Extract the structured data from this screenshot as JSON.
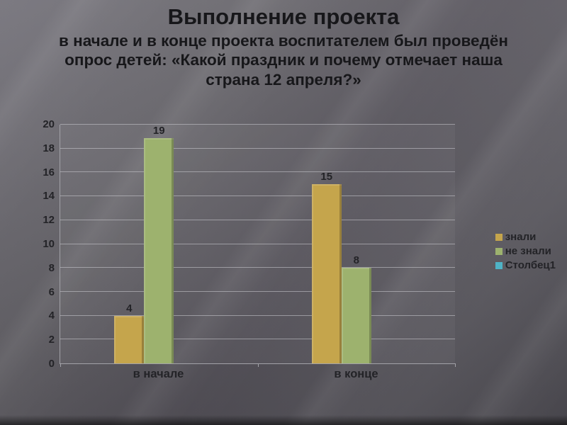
{
  "slide": {
    "title": "Выполнение проекта",
    "subtitle": "в начале и в конце проекта воспитателем был проведён опрос детей: «Какой праздник и почему отмечает наша страна 12 апреля?»"
  },
  "chart_data": {
    "type": "bar",
    "title": "Выполнение проекта",
    "categories": [
      "в начале",
      "в конце"
    ],
    "series": [
      {
        "name": "знали",
        "color": "#c5a54c",
        "values": [
          4,
          15
        ]
      },
      {
        "name": "не знали",
        "color": "#9db26e",
        "values": [
          19,
          8
        ]
      },
      {
        "name": "Столбец1",
        "color": "#4fb3c6",
        "values": [
          0,
          0
        ]
      }
    ],
    "ylim": [
      0,
      20
    ],
    "ytick_step": 2,
    "grid": true,
    "legend_position": "right",
    "data_labels": true,
    "xlabel": "",
    "ylabel": ""
  }
}
